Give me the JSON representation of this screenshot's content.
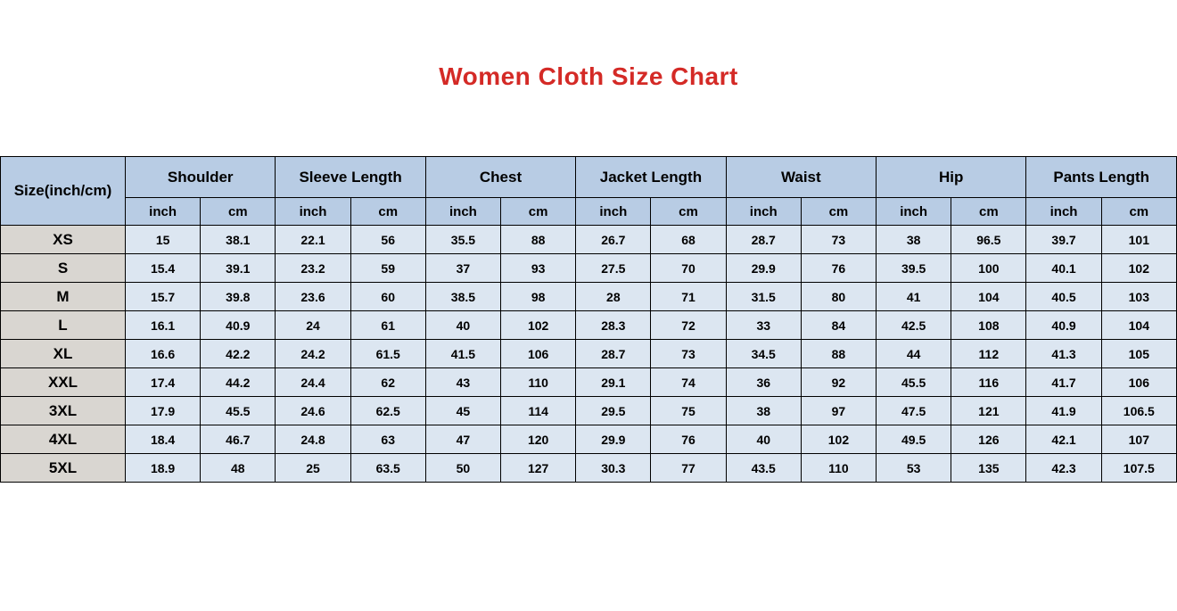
{
  "chart_data": {
    "type": "table",
    "title": "Women Cloth Size Chart",
    "corner_header": "Size(inch/cm)",
    "column_groups": [
      "Shoulder",
      "Sleeve Length",
      "Chest",
      "Jacket Length",
      "Waist",
      "Hip",
      "Pants Length"
    ],
    "unit_headers": [
      "inch",
      "cm"
    ],
    "rows": [
      {
        "size": "XS",
        "values": [
          15,
          38.1,
          22.1,
          56,
          35.5,
          88,
          26.7,
          68,
          28.7,
          73,
          38,
          96.5,
          39.7,
          101
        ]
      },
      {
        "size": "S",
        "values": [
          15.4,
          39.1,
          23.2,
          59,
          37,
          93,
          27.5,
          70,
          29.9,
          76,
          39.5,
          100,
          40.1,
          102
        ]
      },
      {
        "size": "M",
        "values": [
          15.7,
          39.8,
          23.6,
          60,
          38.5,
          98,
          28,
          71,
          31.5,
          80,
          41,
          104,
          40.5,
          103
        ]
      },
      {
        "size": "L",
        "values": [
          16.1,
          40.9,
          24,
          61,
          40,
          102,
          28.3,
          72,
          33,
          84,
          42.5,
          108,
          40.9,
          104
        ]
      },
      {
        "size": "XL",
        "values": [
          16.6,
          42.2,
          24.2,
          61.5,
          41.5,
          106,
          28.7,
          73,
          34.5,
          88,
          44,
          112,
          41.3,
          105
        ]
      },
      {
        "size": "XXL",
        "values": [
          17.4,
          44.2,
          24.4,
          62,
          43,
          110,
          29.1,
          74,
          36,
          92,
          45.5,
          116,
          41.7,
          106
        ]
      },
      {
        "size": "3XL",
        "values": [
          17.9,
          45.5,
          24.6,
          62.5,
          45,
          114,
          29.5,
          75,
          38,
          97,
          47.5,
          121,
          41.9,
          106.5
        ]
      },
      {
        "size": "4XL",
        "values": [
          18.4,
          46.7,
          24.8,
          63,
          47,
          120,
          29.9,
          76,
          40,
          102,
          49.5,
          126,
          42.1,
          107
        ]
      },
      {
        "size": "5XL",
        "values": [
          18.9,
          48,
          25,
          63.5,
          50,
          127,
          30.3,
          77,
          43.5,
          110,
          53,
          135,
          42.3,
          107.5
        ]
      }
    ]
  },
  "colors": {
    "title": "#d42a26",
    "header_bg": "#b8cce4",
    "value_cell_bg": "#dce6f1",
    "size_cell_bg": "#d9d6d1",
    "border": "#000000",
    "text": "#000000",
    "page_bg": "#ffffff"
  }
}
